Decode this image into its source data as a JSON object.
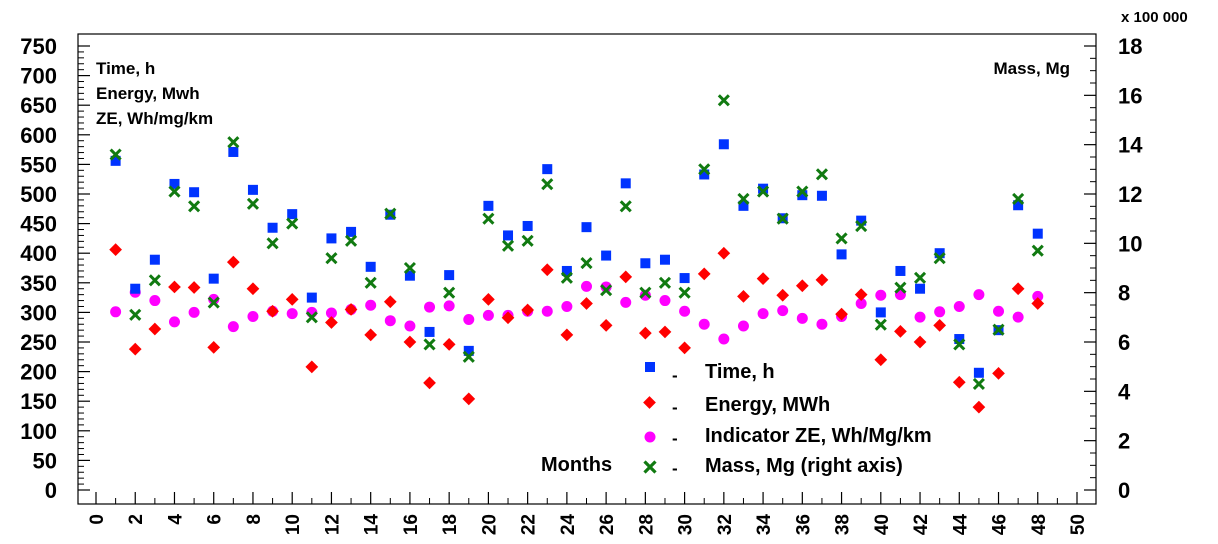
{
  "chart_data": {
    "type": "scatter",
    "left_axis_labels": [
      "Time, h",
      "Energy, Mwh",
      "ZE, Wh/mg/km"
    ],
    "right_axis_label": "Mass, Mg",
    "right_axis_multiplier": "x 100 000",
    "xlabel": "Months",
    "xlim": [
      0,
      50
    ],
    "ylim_left": [
      0,
      750
    ],
    "ylim_right": [
      0,
      18
    ],
    "x_ticks": [
      0,
      2,
      4,
      6,
      8,
      10,
      12,
      14,
      16,
      18,
      20,
      22,
      24,
      26,
      28,
      30,
      32,
      34,
      36,
      38,
      40,
      42,
      44,
      46,
      48,
      50
    ],
    "y_ticks_left": [
      0,
      50,
      100,
      150,
      200,
      250,
      300,
      350,
      400,
      450,
      500,
      550,
      600,
      650,
      700,
      750
    ],
    "y_ticks_right": [
      0,
      2,
      4,
      6,
      8,
      10,
      12,
      14,
      16,
      18
    ],
    "legend_placement": "bottom-right",
    "x": [
      1,
      2,
      3,
      4,
      5,
      6,
      7,
      8,
      9,
      10,
      11,
      12,
      13,
      14,
      15,
      16,
      17,
      18,
      19,
      20,
      21,
      22,
      23,
      24,
      25,
      26,
      27,
      28,
      29,
      30,
      31,
      32,
      33,
      34,
      35,
      36,
      37,
      38,
      39,
      40,
      41,
      42,
      43,
      44,
      45,
      46,
      47,
      48
    ],
    "series": [
      {
        "name": "Time, h",
        "axis": "left",
        "marker": "square",
        "color": "#0033ff",
        "values": [
          556,
          340,
          389,
          517,
          503,
          357,
          571,
          507,
          443,
          466,
          325,
          425,
          436,
          377,
          465,
          362,
          267,
          363,
          235,
          480,
          430,
          446,
          542,
          370,
          444,
          396,
          518,
          383,
          389,
          358,
          533,
          584,
          480,
          509,
          459,
          498,
          497,
          398,
          455,
          300,
          370,
          340,
          400,
          255,
          198,
          270,
          481,
          433
        ]
      },
      {
        "name": "Energy, MWh",
        "axis": "left",
        "marker": "diamond",
        "color": "#ff0000",
        "values": [
          406,
          238,
          272,
          343,
          342,
          241,
          385,
          340,
          302,
          322,
          208,
          283,
          305,
          262,
          318,
          250,
          181,
          246,
          154,
          322,
          291,
          304,
          372,
          262,
          315,
          278,
          360,
          265,
          267,
          240,
          365,
          400,
          327,
          357,
          329,
          345,
          355,
          297,
          330,
          220,
          268,
          250,
          278,
          182,
          140,
          197,
          340,
          315
        ]
      },
      {
        "name": "Indicator ZE, Wh/Mg/km",
        "axis": "left",
        "marker": "circle",
        "color": "#ff00ff",
        "values": [
          301,
          334,
          320,
          284,
          300,
          322,
          276,
          293,
          302,
          298,
          300,
          299,
          305,
          312,
          286,
          277,
          309,
          311,
          288,
          295,
          295,
          302,
          302,
          310,
          344,
          343,
          317,
          329,
          320,
          302,
          280,
          255,
          277,
          298,
          303,
          290,
          280,
          293,
          315,
          329,
          330,
          292,
          301,
          310,
          330,
          302,
          292,
          327
        ]
      },
      {
        "name": "Mass, Mg (right axis)",
        "axis": "right",
        "marker": "x",
        "color": "#117a11",
        "values": [
          13.6,
          7.1,
          8.5,
          12.1,
          11.5,
          7.6,
          14.1,
          11.6,
          10.0,
          10.8,
          7.0,
          9.4,
          10.1,
          8.4,
          11.2,
          9.0,
          5.9,
          8.0,
          5.4,
          11.0,
          9.9,
          10.1,
          12.4,
          8.6,
          9.2,
          8.1,
          11.5,
          8.0,
          8.4,
          8.0,
          13.0,
          15.8,
          11.8,
          12.1,
          11.0,
          12.1,
          12.8,
          10.2,
          10.7,
          6.7,
          8.2,
          8.6,
          9.4,
          5.9,
          4.3,
          6.5,
          11.8,
          9.7
        ]
      }
    ]
  }
}
